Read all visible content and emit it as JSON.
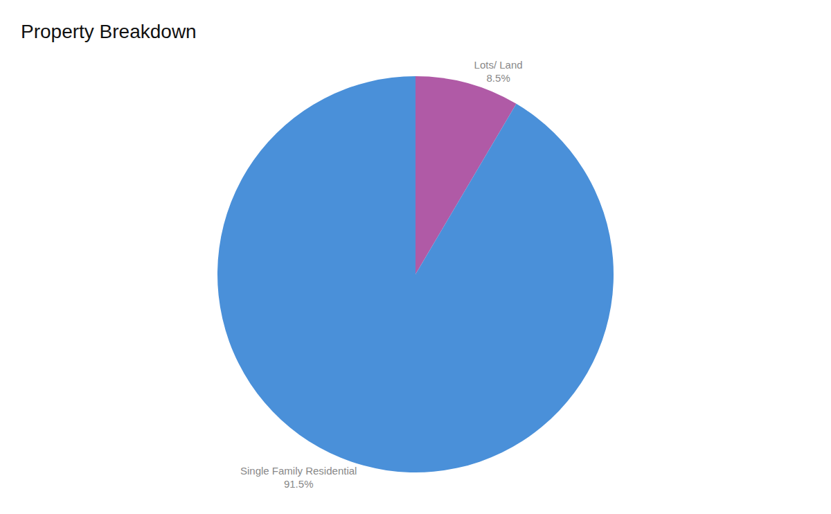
{
  "chart_data": {
    "type": "pie",
    "title": "Property Breakdown",
    "categories": [
      "Lots/ Land",
      "Single Family Residential"
    ],
    "values": [
      8.5,
      91.5
    ],
    "value_labels": [
      "8.5%",
      "91.5%"
    ],
    "colors": [
      "#B05AA6",
      "#4A90D9"
    ],
    "data_labels": true
  }
}
